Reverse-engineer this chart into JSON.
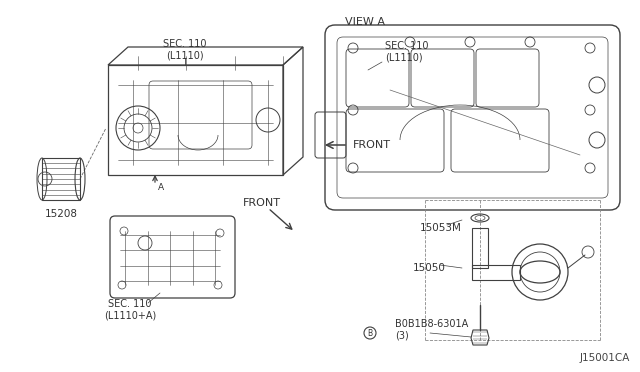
{
  "bg_color": "#ffffff",
  "line_color": "#404040",
  "text_color": "#333333",
  "diagram_id": "J15001CA",
  "view_label": "VIEW A",
  "labels": {
    "sec110_l1110": "SEC. 110\n(L1110)",
    "sec110_l1110_2": "SEC. 110\n(L1110)",
    "sec110_l1110_plus_a": "SEC. 110\n(L1110+A)",
    "part_15208": "15208",
    "part_15053M": "15053M",
    "part_15050": "15050",
    "part_bolt": "B0B1B8-6301A\n(3)",
    "front_left": "FRONT",
    "front_right": "FRONT",
    "arrow_a": "A"
  },
  "figsize": [
    6.4,
    3.72
  ],
  "dpi": 100
}
